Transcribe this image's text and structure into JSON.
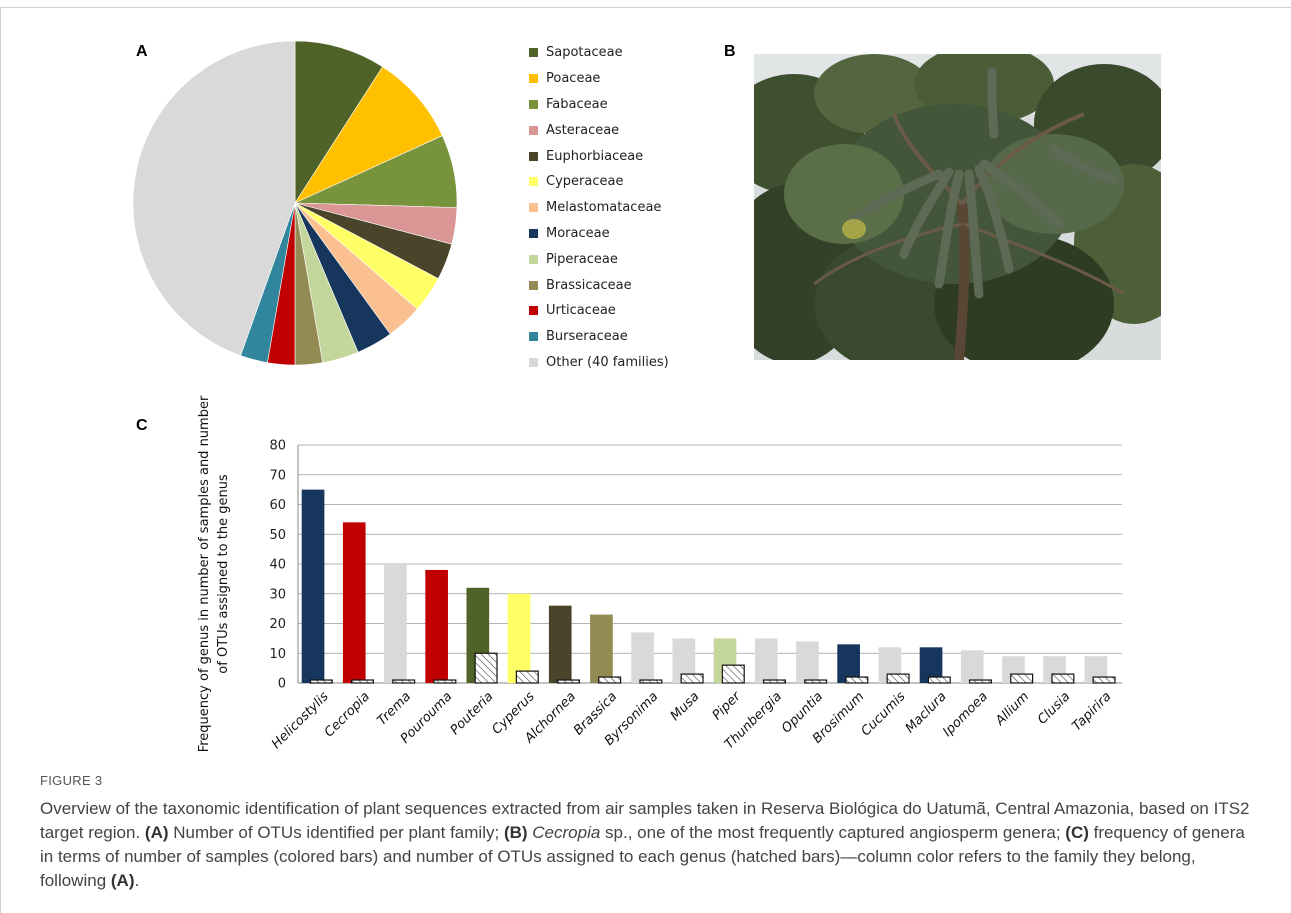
{
  "panels": {
    "a": "A",
    "b": "B",
    "c": "C"
  },
  "figure_label": "FIGURE 3",
  "caption": {
    "p1": "Overview of the taxonomic identification of plant sequences extracted from air samples taken in Reserva Biológica do Uatumã, Central Amazonia, based on ITS2 target region. ",
    "a": "(A)",
    "p2": " Number of OTUs identified per plant family; ",
    "b": "(B)",
    "b_italic": "Cecropia",
    "p3": " sp., one of the most frequently captured angiosperm genera; ",
    "c": "(C)",
    "p4": " frequency of genera in terms of number of samples (colored bars) and number of OTUs assigned to each genus (hatched bars)—column color refers to the family they belong, following ",
    "a2": "(A)",
    "p5": "."
  },
  "photo": {
    "subject": "Cecropia sp. tree with hanging catkins",
    "colors": {
      "sky": "#d9dde0",
      "leaf_dark": "#2e3b24",
      "leaf_mid": "#4a5d37",
      "catkin": "#5b6652",
      "branch": "#5a4a3a"
    }
  },
  "chart_data": [
    {
      "type": "pie",
      "legend_position": "right",
      "slices": [
        {
          "label": "Sapotaceae",
          "value": 5,
          "color": "#4f6228"
        },
        {
          "label": "Poaceae",
          "value": 5,
          "color": "#ffc000"
        },
        {
          "label": "Fabaceae",
          "value": 4,
          "color": "#77933c"
        },
        {
          "label": "Asteraceae",
          "value": 2,
          "color": "#d99694"
        },
        {
          "label": "Euphorbiaceae",
          "value": 2,
          "color": "#4a452a"
        },
        {
          "label": "Cyperaceae",
          "value": 2,
          "color": "#ffff66"
        },
        {
          "label": "Melastomataceae",
          "value": 2,
          "color": "#fac090"
        },
        {
          "label": "Moraceae",
          "value": 2,
          "color": "#17365d"
        },
        {
          "label": "Piperaceae",
          "value": 2,
          "color": "#c3d69b"
        },
        {
          "label": "Brassicaceae",
          "value": 1.5,
          "color": "#948a54"
        },
        {
          "label": "Urticaceae",
          "value": 1.5,
          "color": "#c00000"
        },
        {
          "label": "Burseraceae",
          "value": 1.5,
          "color": "#31859c"
        },
        {
          "label": "Other (40 families)",
          "value": 24.5,
          "color": "#d9d9d9"
        }
      ]
    },
    {
      "type": "bar",
      "ylabel": "Frequency of genus in number of samples and number of OTUs assigned to the genus",
      "ylim": [
        0,
        80
      ],
      "yticks": [
        0,
        10,
        20,
        30,
        40,
        50,
        60,
        70,
        80
      ],
      "grid": true,
      "categories": [
        "Helicostylis",
        "Cecropia",
        "Trema",
        "Pourouma",
        "Pouteria",
        "Cyperus",
        "Alchornea",
        "Brassica",
        "Byrsonima",
        "Musa",
        "Piper",
        "Thunbergia",
        "Opuntia",
        "Brosimum",
        "Cucumis",
        "Maclura",
        "Ipomoea",
        "Allium",
        "Clusia",
        "Tapirira"
      ],
      "series": [
        {
          "values": [
            65,
            54,
            40,
            38,
            32,
            30,
            26,
            23,
            17,
            15,
            15,
            15,
            14,
            13,
            12,
            12,
            11,
            9,
            9,
            9
          ],
          "colors": [
            "#17365d",
            "#c00000",
            "#d9d9d9",
            "#c00000",
            "#4f6228",
            "#ffff66",
            "#4a452a",
            "#948a54",
            "#d9d9d9",
            "#d9d9d9",
            "#c3d69b",
            "#d9d9d9",
            "#d9d9d9",
            "#17365d",
            "#d9d9d9",
            "#17365d",
            "#d9d9d9",
            "#d9d9d9",
            "#d9d9d9",
            "#d9d9d9"
          ]
        },
        {
          "hatched": true,
          "values": [
            1,
            1,
            1,
            1,
            10,
            4,
            1,
            2,
            1,
            3,
            6,
            1,
            1,
            2,
            3,
            2,
            1,
            3,
            3,
            2
          ]
        }
      ]
    }
  ]
}
